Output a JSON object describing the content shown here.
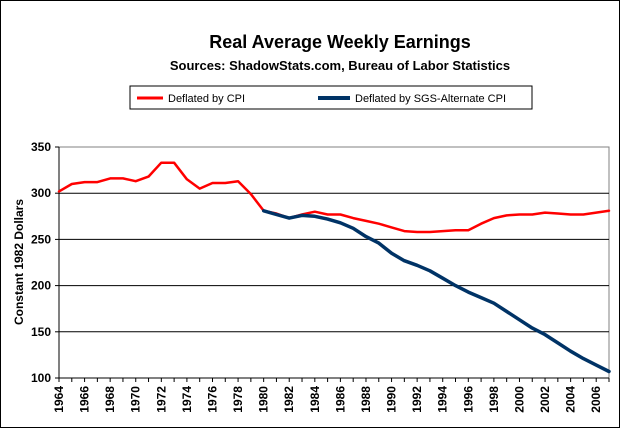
{
  "chart_data": {
    "type": "line",
    "title": "Real Average Weekly Earnings",
    "subtitle": "Sources: ShadowStats.com, Bureau of Labor Statistics",
    "xlabel": "",
    "ylabel": "Constant 1982 Dollars",
    "xlim": [
      1964,
      2007
    ],
    "ylim": [
      100,
      350
    ],
    "yticks": [
      100,
      150,
      200,
      250,
      300,
      350
    ],
    "xticks": [
      "1964",
      "1966",
      "1968",
      "1970",
      "1972",
      "1974",
      "1976",
      "1978",
      "1980",
      "1982",
      "1984",
      "1986",
      "1988",
      "1990",
      "1992",
      "1994",
      "1996",
      "1998",
      "2000",
      "2002",
      "2004",
      "2006"
    ],
    "grid": true,
    "legend_position": "top",
    "plot_background": "#ffffff",
    "series": [
      {
        "name": "Deflated by CPI",
        "color": "#ff0000",
        "x": [
          1964,
          1965,
          1966,
          1967,
          1968,
          1969,
          1970,
          1971,
          1972,
          1973,
          1974,
          1975,
          1976,
          1977,
          1978,
          1979,
          1980,
          1981,
          1982,
          1983,
          1984,
          1985,
          1986,
          1987,
          1988,
          1989,
          1990,
          1991,
          1992,
          1993,
          1994,
          1995,
          1996,
          1997,
          1998,
          1999,
          2000,
          2001,
          2002,
          2003,
          2004,
          2005,
          2006,
          2007
        ],
        "y": [
          302,
          310,
          312,
          312,
          316,
          316,
          313,
          318,
          333,
          333,
          315,
          305,
          311,
          311,
          313,
          299,
          281,
          278,
          273,
          277,
          280,
          277,
          277,
          273,
          270,
          267,
          263,
          259,
          258,
          258,
          259,
          260,
          260,
          267,
          273,
          276,
          277,
          277,
          279,
          278,
          277,
          277,
          279,
          281
        ]
      },
      {
        "name": "Deflated by SGS-Alternate CPI",
        "color": "#003366",
        "x": [
          1980,
          1981,
          1982,
          1983,
          1984,
          1985,
          1986,
          1987,
          1988,
          1989,
          1990,
          1991,
          1992,
          1993,
          1994,
          1995,
          1996,
          1997,
          1998,
          1999,
          2000,
          2001,
          2002,
          2003,
          2004,
          2005,
          2006,
          2007
        ],
        "y": [
          281,
          277,
          273,
          276,
          275,
          272,
          268,
          262,
          253,
          246,
          235,
          227,
          222,
          216,
          208,
          200,
          193,
          187,
          181,
          172,
          163,
          154,
          147,
          138,
          129,
          121,
          114,
          107
        ]
      }
    ]
  }
}
